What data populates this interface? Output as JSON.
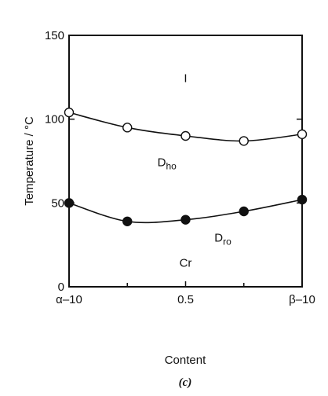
{
  "chart_data": {
    "type": "line",
    "xlabel": "Content",
    "ylabel": "Temperature / °C",
    "xlim": [
      0,
      1
    ],
    "ylim": [
      0,
      150
    ],
    "x_ticks": [
      {
        "value": 0,
        "label": "α–10"
      },
      {
        "value": 0.5,
        "label": "0.5"
      },
      {
        "value": 1,
        "label": "β–10"
      }
    ],
    "y_ticks": [
      0,
      50,
      100,
      150
    ],
    "caption": "(c)",
    "series": [
      {
        "marker": "open-circle",
        "x": [
          0,
          0.25,
          0.5,
          0.75,
          1
        ],
        "y": [
          104,
          95,
          90,
          87,
          91
        ]
      },
      {
        "marker": "filled-circle",
        "x": [
          0,
          0.25,
          0.5,
          0.75,
          1
        ],
        "y": [
          50,
          39,
          40,
          45,
          52
        ]
      }
    ],
    "regions": [
      {
        "label": "I",
        "x": 0.5,
        "y": 122
      },
      {
        "label": "D",
        "sub": "ho",
        "x": 0.42,
        "y": 72
      },
      {
        "label": "D",
        "sub": "ro",
        "x": 0.66,
        "y": 27
      },
      {
        "label": "Cr",
        "x": 0.5,
        "y": 12
      }
    ]
  }
}
